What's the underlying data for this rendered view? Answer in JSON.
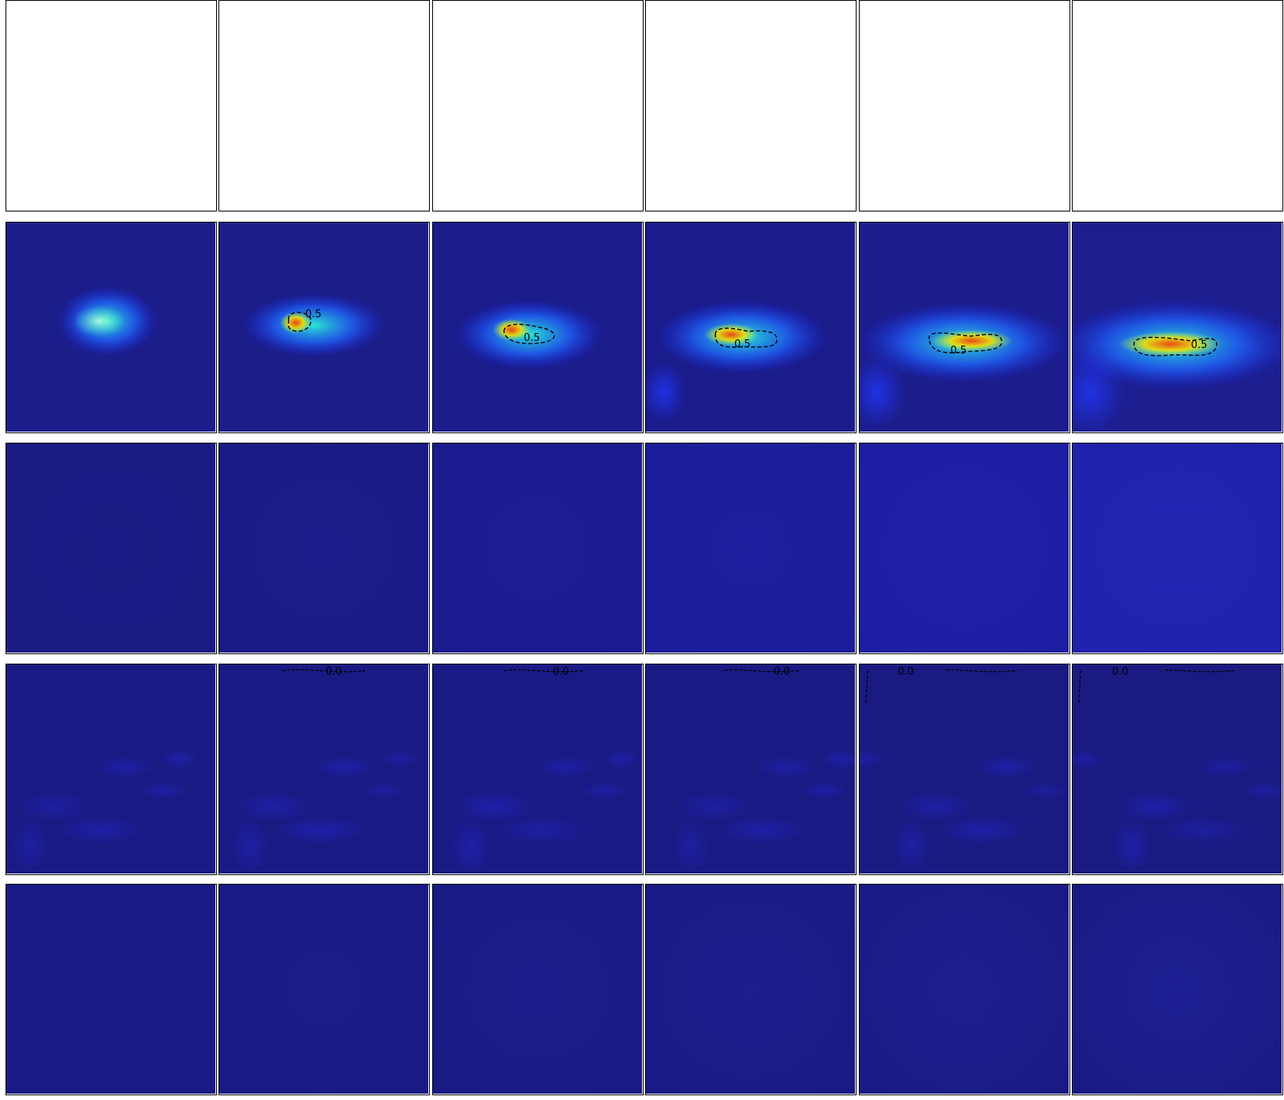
{
  "chart_data": {
    "type": "heatmap",
    "layout": {
      "rows": 5,
      "cols": 6
    },
    "colormap": "jet",
    "colors": {
      "low": "#191a85",
      "mid": "#26e0c0",
      "high": "#ff2a00",
      "contour": "#000000",
      "panel_border": "#000000",
      "blank": "#ffffff"
    },
    "rows": [
      {
        "kind": "empty",
        "panels": [
          {},
          {},
          {},
          {},
          {},
          {}
        ]
      },
      {
        "kind": "blob",
        "panels": [
          {
            "background": "#1b1d8b",
            "contour_label": ""
          },
          {
            "background": "#1b1d89",
            "contour_label": "0.5"
          },
          {
            "background": "#1a1c8c",
            "contour_label": "0.5"
          },
          {
            "background": "#1a1c8c",
            "contour_label": "0.5"
          },
          {
            "background": "#1b1d8d",
            "contour_label": "0.5"
          },
          {
            "background": "#1c1e90",
            "contour_label": "0.5"
          }
        ]
      },
      {
        "kind": "uniform",
        "panels": [
          {
            "background": "#1a1a82",
            "contour_label": ""
          },
          {
            "background": "#1a1a86",
            "contour_label": ""
          },
          {
            "background": "#1b1b8e",
            "contour_label": ""
          },
          {
            "background": "#1b1c98",
            "contour_label": ""
          },
          {
            "background": "#1c1ea2",
            "contour_label": ""
          },
          {
            "background": "#1e22ac",
            "contour_label": ""
          }
        ]
      },
      {
        "kind": "noise",
        "panels": [
          {
            "background": "#1a1a84",
            "contour_label": ""
          },
          {
            "background": "#1a1a84",
            "contour_label": "0.0"
          },
          {
            "background": "#1a1a86",
            "contour_label": "0.0"
          },
          {
            "background": "#1a1a84",
            "contour_label": "0.0"
          },
          {
            "background": "#1a1a82",
            "contour_label": "0.0"
          },
          {
            "background": "#1a1a82",
            "contour_label": "0.0"
          }
        ]
      },
      {
        "kind": "uniform",
        "panels": [
          {
            "background": "#191a84",
            "contour_label": ""
          },
          {
            "background": "#191a84",
            "contour_label": ""
          },
          {
            "background": "#191a84",
            "contour_label": ""
          },
          {
            "background": "#191a84",
            "contour_label": ""
          },
          {
            "background": "#191a84",
            "contour_label": ""
          },
          {
            "background": "#191a84",
            "contour_label": ""
          }
        ]
      }
    ]
  }
}
